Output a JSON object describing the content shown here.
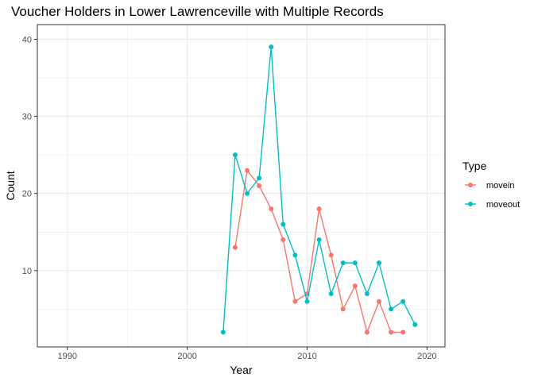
{
  "chart_data": {
    "type": "line",
    "title": "Voucher Holders in Lower Lawrenceville with Multiple Records",
    "xlabel": "Year",
    "ylabel": "Count",
    "xlim": [
      1987.5,
      2021.5
    ],
    "ylim": [
      0.1,
      41.9
    ],
    "x_ticks": [
      1990,
      2000,
      2010,
      2020
    ],
    "y_ticks": [
      10,
      20,
      30,
      40
    ],
    "x_minor_ticks": [
      1995,
      2005,
      2015
    ],
    "y_minor_ticks": [
      5,
      15,
      25,
      35
    ],
    "grid": true,
    "legend": {
      "title": "Type",
      "position": "right"
    },
    "series": [
      {
        "name": "movein",
        "color": "#F8766D",
        "points": [
          {
            "x": 2004,
            "y": 13
          },
          {
            "x": 2005,
            "y": 23
          },
          {
            "x": 2006,
            "y": 21
          },
          {
            "x": 2007,
            "y": 18
          },
          {
            "x": 2008,
            "y": 14
          },
          {
            "x": 2009,
            "y": 6
          },
          {
            "x": 2010,
            "y": 7
          },
          {
            "x": 2011,
            "y": 18
          },
          {
            "x": 2012,
            "y": 12
          },
          {
            "x": 2013,
            "y": 5
          },
          {
            "x": 2014,
            "y": 8
          },
          {
            "x": 2015,
            "y": 2
          },
          {
            "x": 2016,
            "y": 6
          },
          {
            "x": 2017,
            "y": 2
          },
          {
            "x": 2018,
            "y": 2
          }
        ]
      },
      {
        "name": "moveout",
        "color": "#00BFC4",
        "points": [
          {
            "x": 2003,
            "y": 2
          },
          {
            "x": 2004,
            "y": 25
          },
          {
            "x": 2005,
            "y": 20
          },
          {
            "x": 2006,
            "y": 22
          },
          {
            "x": 2007,
            "y": 39
          },
          {
            "x": 2008,
            "y": 16
          },
          {
            "x": 2009,
            "y": 12
          },
          {
            "x": 2010,
            "y": 6
          },
          {
            "x": 2011,
            "y": 14
          },
          {
            "x": 2012,
            "y": 7
          },
          {
            "x": 2013,
            "y": 11
          },
          {
            "x": 2014,
            "y": 11
          },
          {
            "x": 2015,
            "y": 7
          },
          {
            "x": 2016,
            "y": 11
          },
          {
            "x": 2017,
            "y": 5
          },
          {
            "x": 2018,
            "y": 6
          },
          {
            "x": 2019,
            "y": 3
          }
        ]
      }
    ]
  }
}
